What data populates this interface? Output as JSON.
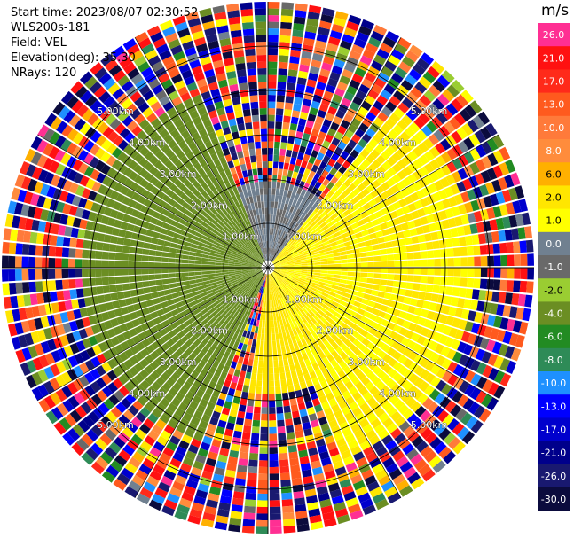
{
  "header": {
    "start_time": "Start time: 2023/08/07 02:30:52",
    "instrument": "WLS200s-181",
    "field": "Field: VEL",
    "elevation": "Elevation(deg): 35.30",
    "nrays": "NRays: 120"
  },
  "colorbar": {
    "unit": "m/s",
    "levels": [
      "26.0",
      "21.0",
      "17.0",
      "13.0",
      "10.0",
      "8.0",
      "6.0",
      "2.0",
      "1.0",
      "0.0",
      "-1.0",
      "-2.0",
      "-4.0",
      "-6.0",
      "-8.0",
      "-10.0",
      "-13.0",
      "-17.0",
      "-21.0",
      "-26.0",
      "-30.0"
    ],
    "colors": [
      "#ff2f93",
      "#ff1111",
      "#ff2a1a",
      "#ff5a1e",
      "#ff7a3a",
      "#ff8c3c",
      "#ffb000",
      "#ffe600",
      "#ffff00",
      "#708090",
      "#696969",
      "#9acd32",
      "#6b8e23",
      "#228b22",
      "#2e8b57",
      "#1e90ff",
      "#0000ff",
      "#0000cd",
      "#00008b",
      "#191970",
      "#0b0b3d"
    ]
  },
  "chart_data": {
    "type": "heatmap",
    "title": "",
    "rays": 120,
    "elevation_deg": 35.3,
    "max_range_km": 6.0,
    "range_rings_km": [
      1.0,
      2.0,
      3.0,
      4.0,
      5.0
    ],
    "range_ring_labels": [
      "1.00km",
      "2.00km",
      "3.00km",
      "4.00km",
      "5.00km"
    ],
    "unit": "m/s",
    "velocity_regions": [
      {
        "azimuth_deg": [
          200,
          340
        ],
        "range_km": [
          0.0,
          4.2
        ],
        "velocity_ms": -3.0
      },
      {
        "azimuth_deg": [
          340,
          40
        ],
        "range_km": [
          0.0,
          2.0
        ],
        "velocity_ms": 0.0
      },
      {
        "azimuth_deg": [
          40,
          160
        ],
        "range_km": [
          0.0,
          4.6
        ],
        "velocity_ms": 2.0
      },
      {
        "azimuth_deg": [
          130,
          190
        ],
        "range_km": [
          0.0,
          2.8
        ],
        "velocity_ms": 5.0
      },
      {
        "azimuth_deg": [
          0,
          360
        ],
        "range_km": [
          4.2,
          6.0
        ],
        "velocity_ms": "noisy"
      }
    ]
  }
}
